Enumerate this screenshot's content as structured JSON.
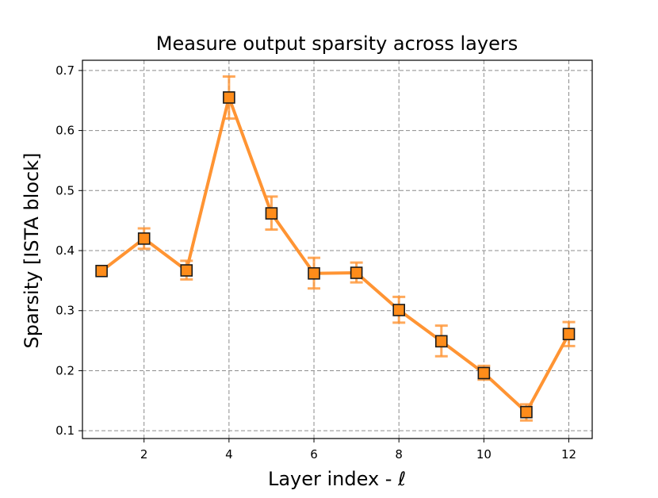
{
  "chart_data": {
    "type": "line",
    "title": "Measure output sparsity across layers",
    "xlabel": "Layer index - ℓ",
    "ylabel": "Sparsity [ISTA block]",
    "xlim": [
      0.55,
      12.55
    ],
    "ylim": [
      0.087,
      0.717
    ],
    "xticks": [
      2,
      4,
      6,
      8,
      10,
      12
    ],
    "yticks": [
      0.1,
      0.2,
      0.3,
      0.4,
      0.5,
      0.6,
      0.7
    ],
    "xtick_labels": [
      "2",
      "4",
      "6",
      "8",
      "10",
      "12"
    ],
    "ytick_labels": [
      "0.1",
      "0.2",
      "0.3",
      "0.4",
      "0.5",
      "0.6",
      "0.7"
    ],
    "grid": true,
    "legend": "none",
    "series": [
      {
        "x": [
          1,
          2,
          3,
          4,
          5,
          6,
          7,
          8,
          9,
          10,
          11,
          12
        ],
        "y": [
          0.366,
          0.42,
          0.367,
          0.655,
          0.462,
          0.362,
          0.363,
          0.301,
          0.249,
          0.196,
          0.131,
          0.261
        ],
        "yerr_low": [
          0.366,
          0.403,
          0.352,
          0.62,
          0.435,
          0.337,
          0.347,
          0.28,
          0.224,
          0.185,
          0.117,
          0.241
        ],
        "yerr_high": [
          0.366,
          0.437,
          0.383,
          0.69,
          0.49,
          0.388,
          0.38,
          0.323,
          0.275,
          0.208,
          0.144,
          0.281
        ],
        "color": "#ff9433",
        "marker": "square",
        "marker_fill": "#ff8c1a",
        "marker_edge": "#1a1a1a"
      }
    ]
  }
}
